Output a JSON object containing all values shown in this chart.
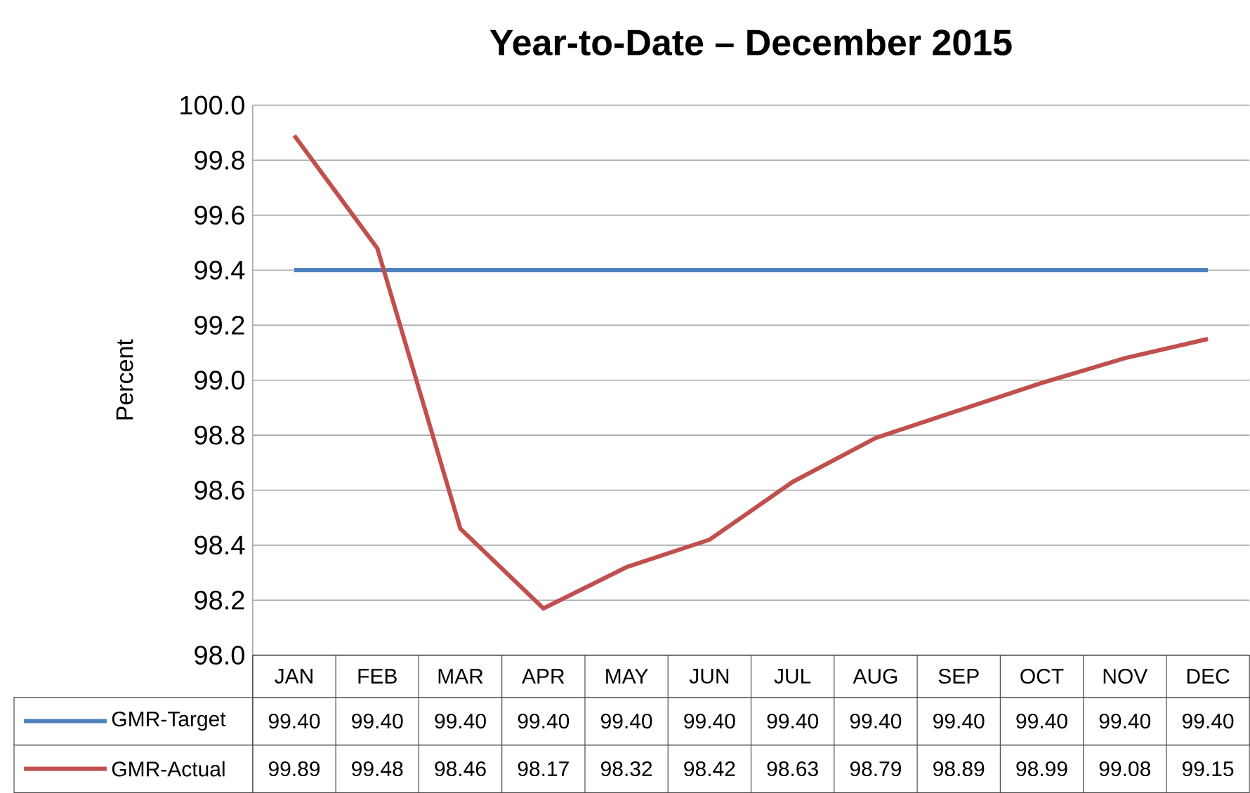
{
  "chart_data": {
    "type": "line",
    "title": "Year-to-Date – December 2015",
    "ylabel": "Percent",
    "categories": [
      "JAN",
      "FEB",
      "MAR",
      "APR",
      "MAY",
      "JUN",
      "JUL",
      "AUG",
      "SEP",
      "OCT",
      "NOV",
      "DEC"
    ],
    "series": [
      {
        "name": "GMR-Target",
        "color": "#4f81bd",
        "values": [
          99.4,
          99.4,
          99.4,
          99.4,
          99.4,
          99.4,
          99.4,
          99.4,
          99.4,
          99.4,
          99.4,
          99.4
        ],
        "value_labels": [
          "99.40",
          "99.40",
          "99.40",
          "99.40",
          "99.40",
          "99.40",
          "99.40",
          "99.40",
          "99.40",
          "99.40",
          "99.40",
          "99.40"
        ]
      },
      {
        "name": "GMR-Actual",
        "color": "#c0504d",
        "values": [
          99.89,
          99.48,
          98.46,
          98.17,
          98.32,
          98.42,
          98.63,
          98.79,
          98.89,
          98.99,
          99.08,
          99.15
        ],
        "value_labels": [
          "99.89",
          "99.48",
          "98.46",
          "98.17",
          "98.32",
          "98.42",
          "98.63",
          "98.79",
          "98.89",
          "98.99",
          "99.08",
          "99.15"
        ]
      }
    ],
    "ylim": [
      98.0,
      100.0
    ],
    "yticks": [
      {
        "value": 98.0,
        "label": "98.0"
      },
      {
        "value": 98.2,
        "label": "98.2"
      },
      {
        "value": 98.4,
        "label": "98.4"
      },
      {
        "value": 98.6,
        "label": "98.6"
      },
      {
        "value": 98.8,
        "label": "98.8"
      },
      {
        "value": 99.0,
        "label": "99.0"
      },
      {
        "value": 99.2,
        "label": "99.2"
      },
      {
        "value": 99.4,
        "label": "99.4"
      },
      {
        "value": 99.6,
        "label": "99.6"
      },
      {
        "value": 99.8,
        "label": "99.8"
      },
      {
        "value": 100.0,
        "label": "100.0"
      }
    ],
    "grid": "y",
    "legend": "bottom",
    "marker": "none",
    "line_style": "solid"
  }
}
